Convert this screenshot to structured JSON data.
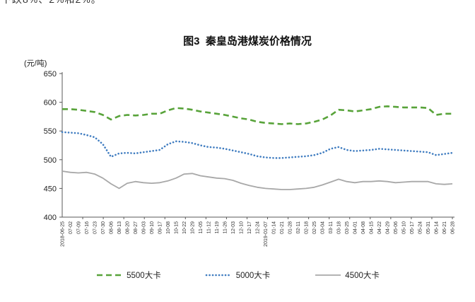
{
  "page": {
    "clipped_text_fragment": "下跌8%、2%和2%。"
  },
  "chart": {
    "title": "图3  秦皇岛港煤炭价格情况",
    "unit_label": "(元/吨)"
  },
  "chart_data": {
    "type": "line",
    "title": "图3 秦皇岛港煤炭价格情况",
    "ylabel": "(元/吨)",
    "ylim": [
      400,
      650
    ],
    "ytick_interval": 50,
    "grid": false,
    "legend_position": "bottom",
    "x": [
      "2018-06-25",
      "07-02",
      "07-09",
      "07-16",
      "07-23",
      "07-30",
      "08-06",
      "08-13",
      "08-20",
      "08-27",
      "09-03",
      "09-10",
      "09-17",
      "10-08",
      "10-15",
      "10-22",
      "10-29",
      "11-05",
      "11-12",
      "11-19",
      "11-26",
      "12-03",
      "12-10",
      "12-17",
      "12-24",
      "2019-01-07",
      "01-14",
      "01-21",
      "01-28",
      "02-11",
      "02-18",
      "02-25",
      "03-04",
      "03-11",
      "03-18",
      "03-25",
      "04-01",
      "04-08",
      "04-15",
      "04-22",
      "04-29",
      "05-06",
      "05-10",
      "05-17",
      "05-24",
      "05-31",
      "06-14",
      "06-21",
      "06-28"
    ],
    "series": [
      {
        "name": "5500大卡",
        "color": "#58a33a",
        "style": "dashed",
        "values": [
          588,
          588,
          587,
          585,
          583,
          578,
          570,
          576,
          578,
          577,
          578,
          580,
          580,
          586,
          590,
          589,
          587,
          584,
          582,
          580,
          578,
          575,
          572,
          570,
          566,
          564,
          563,
          562,
          563,
          562,
          563,
          566,
          570,
          577,
          587,
          586,
          584,
          586,
          588,
          592,
          593,
          592,
          591,
          591,
          591,
          590,
          578,
          580,
          580
        ]
      },
      {
        "name": "5000大卡",
        "color": "#3f7cc0",
        "style": "dotted",
        "values": [
          548,
          547,
          546,
          543,
          539,
          527,
          505,
          511,
          512,
          511,
          513,
          515,
          517,
          527,
          532,
          531,
          529,
          525,
          522,
          521,
          519,
          516,
          513,
          510,
          506,
          504,
          503,
          503,
          504,
          505,
          506,
          508,
          512,
          519,
          522,
          517,
          515,
          516,
          517,
          519,
          518,
          517,
          516,
          515,
          514,
          513,
          508,
          510,
          512
        ]
      },
      {
        "name": "4500大卡",
        "color": "#a8a8a8",
        "style": "solid",
        "values": [
          480,
          478,
          477,
          478,
          475,
          468,
          458,
          450,
          459,
          462,
          460,
          459,
          460,
          463,
          468,
          475,
          476,
          472,
          470,
          468,
          467,
          464,
          459,
          455,
          452,
          450,
          449,
          448,
          448,
          449,
          450,
          452,
          456,
          461,
          466,
          462,
          460,
          462,
          462,
          463,
          462,
          460,
          461,
          462,
          462,
          462,
          458,
          457,
          458
        ]
      }
    ]
  }
}
